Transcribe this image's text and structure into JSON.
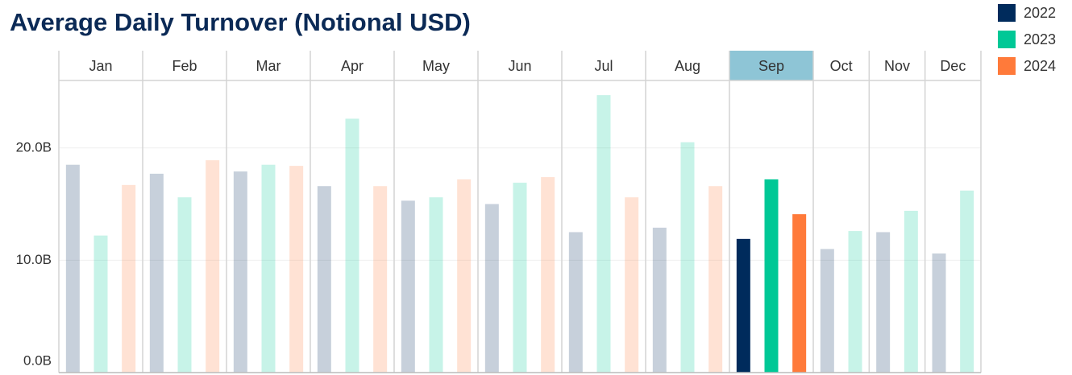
{
  "chart_data": {
    "type": "bar",
    "title": "Average Daily Turnover (Notional USD)",
    "categories": [
      "Jan",
      "Feb",
      "Mar",
      "Apr",
      "May",
      "Jun",
      "Jul",
      "Aug",
      "Sep",
      "Oct",
      "Nov",
      "Dec"
    ],
    "series": [
      {
        "name": "2022",
        "color": "#002b5c",
        "values": [
          18.5,
          17.7,
          17.9,
          16.6,
          15.3,
          15.0,
          12.5,
          12.9,
          11.9,
          11.0,
          12.5,
          10.6
        ]
      },
      {
        "name": "2023",
        "color": "#00c896",
        "values": [
          12.2,
          15.6,
          18.5,
          22.6,
          15.6,
          16.9,
          24.7,
          20.5,
          17.2,
          12.6,
          14.4,
          16.2
        ]
      },
      {
        "name": "2024",
        "color": "#ff7a3a",
        "values": [
          16.7,
          18.9,
          18.4,
          16.6,
          17.2,
          17.4,
          15.6,
          16.6,
          14.1,
          null,
          null,
          null
        ]
      }
    ],
    "ylim": [
      0,
      26
    ],
    "yticks": [
      {
        "value": 0,
        "label": "0.0B"
      },
      {
        "value": 10,
        "label": "10.0B"
      },
      {
        "value": 20,
        "label": "20.0B"
      }
    ],
    "grid": true,
    "highlighted_category": 8,
    "legend": "top-right"
  }
}
